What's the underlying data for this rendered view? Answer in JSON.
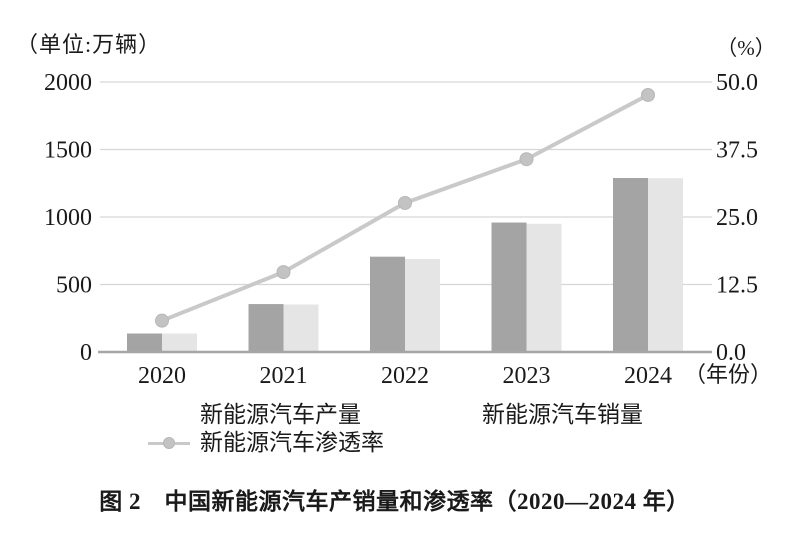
{
  "figure": {
    "unit_left": "（单位:万辆）",
    "unit_right": "（%）",
    "caption": "图 2　中国新能源汽车产销量和渗透率（2020—2024 年）"
  },
  "legend": {
    "production": "新能源汽车产量",
    "sales": "新能源汽车销量",
    "penetration": "新能源汽车渗透率"
  },
  "colors": {
    "bar_production": "#a4a4a4",
    "bar_sales": "#e5e5e5",
    "line": "#c9c9c9",
    "marker": "#c3c3c3",
    "marker_edge": "#b7b7b7",
    "grid": "#d6d6d6",
    "axis": "#a6a6a6",
    "text": "#1a1a1a"
  },
  "chart_data": {
    "type": "bar+line",
    "title": "图 2　中国新能源汽车产销量和渗透率（2020—2024 年）",
    "categories": [
      "2020",
      "2021",
      "2022",
      "2023",
      "2024"
    ],
    "x_axis_suffix": "（年份）",
    "series": [
      {
        "name": "新能源汽车产量",
        "type": "bar",
        "axis": "left",
        "color": "#a4a4a4",
        "values": [
          137,
          355,
          706,
          959,
          1289
        ]
      },
      {
        "name": "新能源汽车销量",
        "type": "bar",
        "axis": "left",
        "color": "#e5e5e5",
        "values": [
          137,
          352,
          689,
          950,
          1287
        ]
      },
      {
        "name": "新能源汽车渗透率",
        "type": "line",
        "axis": "right",
        "color": "#c9c9c9",
        "values": [
          5.8,
          14.8,
          27.6,
          35.7,
          47.6
        ]
      }
    ],
    "left_axis": {
      "label": "（单位:万辆）",
      "min": 0,
      "max": 2000,
      "ticks": [
        0,
        500,
        1000,
        1500,
        2000
      ]
    },
    "right_axis": {
      "label": "（%）",
      "min": 0,
      "max": 50,
      "ticks": [
        "0.0",
        "12.5",
        "25.0",
        "37.5",
        "50.0"
      ]
    },
    "grid": true,
    "legend_position": "bottom"
  }
}
